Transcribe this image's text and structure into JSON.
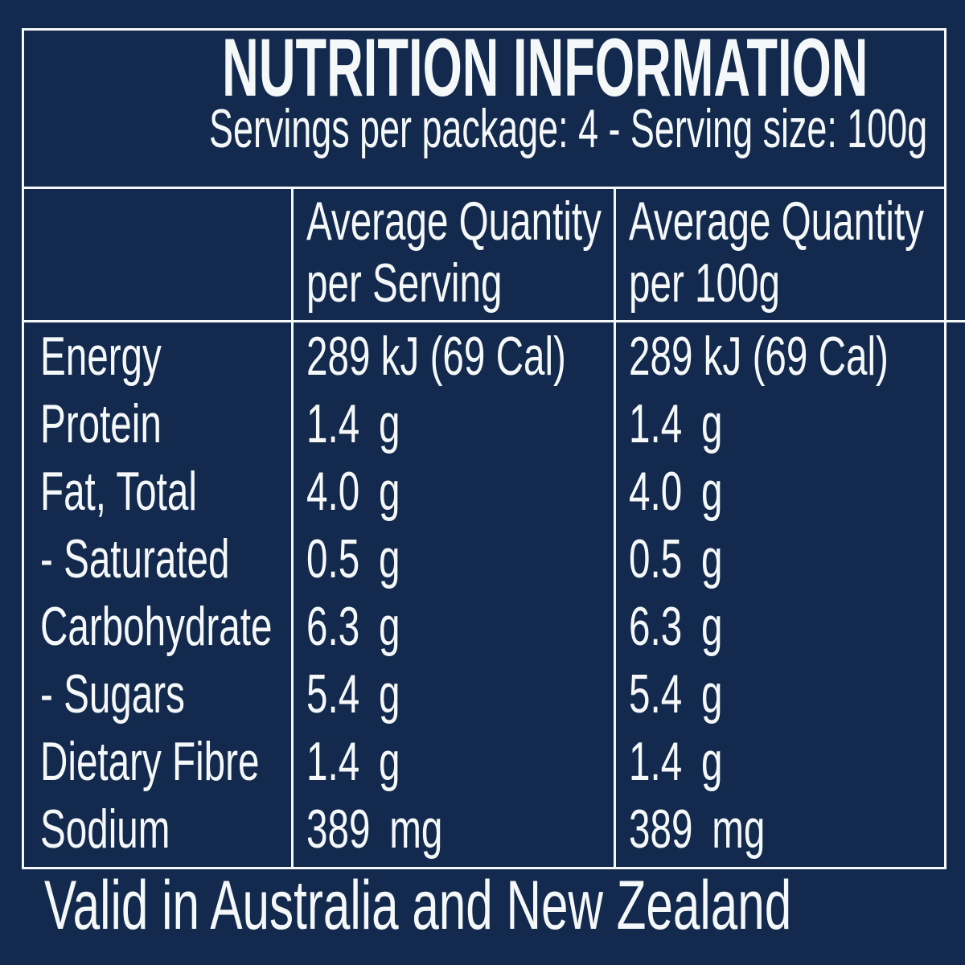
{
  "colors": {
    "background": "#132a4e",
    "text": "#f5f8f8",
    "line": "#f5f8f8"
  },
  "header": {
    "title": "NUTRITION INFORMATION",
    "subtitle": "Servings per package: 4 - Serving size: 100g"
  },
  "table": {
    "column_headers": {
      "per_serving": {
        "line1": "Average Quantity",
        "line2": "per Serving"
      },
      "per_100g": {
        "line1": "Average Quantity",
        "line2": "per 100g"
      }
    },
    "rows": [
      {
        "label": "Energy",
        "per_serving": {
          "amount": "289 kJ",
          "unit": "(69 Cal)"
        },
        "per_100g": {
          "amount": "289 kJ",
          "unit": "(69 Cal)"
        }
      },
      {
        "label": "Protein",
        "per_serving": {
          "amount": "1.4",
          "unit": "g"
        },
        "per_100g": {
          "amount": "1.4",
          "unit": "g"
        }
      },
      {
        "label": "Fat, Total",
        "per_serving": {
          "amount": "4.0",
          "unit": "g"
        },
        "per_100g": {
          "amount": "4.0",
          "unit": "g"
        }
      },
      {
        "label": "- Saturated",
        "per_serving": {
          "amount": "0.5",
          "unit": "g"
        },
        "per_100g": {
          "amount": "0.5",
          "unit": "g"
        }
      },
      {
        "label": "Carbohydrate",
        "per_serving": {
          "amount": "6.3",
          "unit": "g"
        },
        "per_100g": {
          "amount": "6.3",
          "unit": "g"
        }
      },
      {
        "label": "- Sugars",
        "per_serving": {
          "amount": "5.4",
          "unit": "g"
        },
        "per_100g": {
          "amount": "5.4",
          "unit": "g"
        }
      },
      {
        "label": "Dietary Fibre",
        "per_serving": {
          "amount": "1.4",
          "unit": "g"
        },
        "per_100g": {
          "amount": "1.4",
          "unit": "g"
        }
      },
      {
        "label": "Sodium",
        "per_serving": {
          "amount": "389",
          "unit": "mg"
        },
        "per_100g": {
          "amount": "389",
          "unit": "mg"
        }
      }
    ]
  },
  "footer": {
    "note": "Valid in Australia and New Zealand"
  }
}
